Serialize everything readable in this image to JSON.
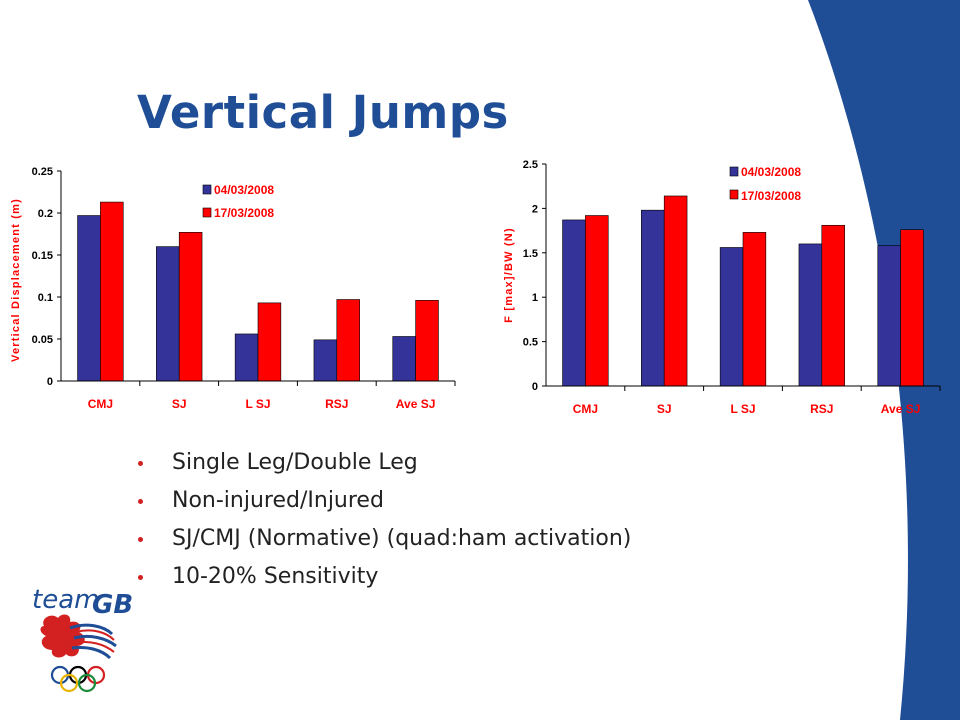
{
  "slide": {
    "title": "Vertical Jumps",
    "bullets": [
      "Single Leg/Double Leg",
      "Non-injured/Injured",
      "SJ/CMJ (Normative) (quad:ham activation)",
      "10-20% Sensitivity"
    ],
    "logo_text_team": "team",
    "logo_text_gb": "GB",
    "colors": {
      "title": "#1f4e96",
      "swoosh": "#1f4e96",
      "bullet_dot": "#d32020"
    }
  },
  "chart_data": [
    {
      "type": "bar",
      "categories": [
        "CMJ",
        "SJ",
        "L SJ",
        "RSJ",
        "Ave SJ"
      ],
      "series": [
        {
          "name": "04/03/2008",
          "color": "#333399",
          "values": [
            0.197,
            0.16,
            0.056,
            0.049,
            0.053
          ]
        },
        {
          "name": "17/03/2008",
          "color": "#ff0000",
          "values": [
            0.213,
            0.177,
            0.093,
            0.097,
            0.096
          ]
        }
      ],
      "ylabel": "Vertical Displacement (m)",
      "ylim": [
        0,
        0.25
      ],
      "yticks": [
        "0",
        "0.05",
        "0.1",
        "0.15",
        "0.2",
        "0.25"
      ],
      "grid": false,
      "legend": "top-right"
    },
    {
      "type": "bar",
      "categories": [
        "CMJ",
        "SJ",
        "L SJ",
        "RSJ",
        "Ave SJ"
      ],
      "series": [
        {
          "name": "04/03/2008",
          "color": "#333399",
          "values": [
            1.87,
            1.98,
            1.56,
            1.6,
            1.58
          ]
        },
        {
          "name": "17/03/2008",
          "color": "#ff0000",
          "values": [
            1.92,
            2.14,
            1.73,
            1.81,
            1.76
          ]
        }
      ],
      "ylabel": "F [max]/BW (N)",
      "ylim": [
        0,
        2.5
      ],
      "yticks": [
        "0",
        "0.5",
        "1",
        "1.5",
        "2",
        "2.5"
      ],
      "grid": false,
      "legend": "top-right"
    }
  ]
}
